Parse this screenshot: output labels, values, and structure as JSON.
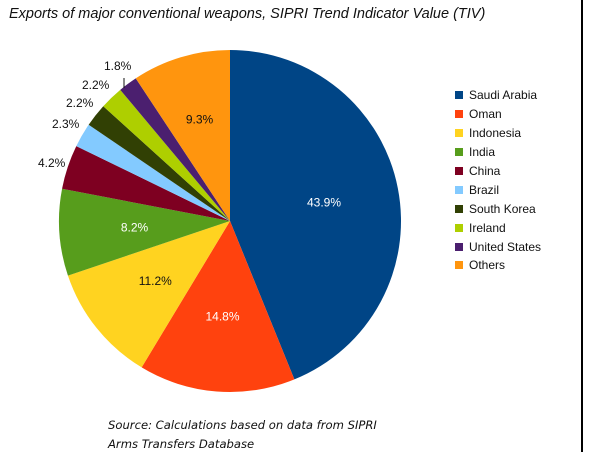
{
  "chart_data": {
    "type": "pie",
    "title": "Exports of major conventional weapons, SIPRI Trend Indicator Value (TIV)",
    "legend_position": "right",
    "slices": [
      {
        "name": "Saudi Arabia",
        "label": "43.9%",
        "value": 43.9,
        "color": "#004586"
      },
      {
        "name": "Oman",
        "label": "14.8%",
        "value": 14.8,
        "color": "#ff420e"
      },
      {
        "name": "Indonesia",
        "label": "11.2%",
        "value": 11.2,
        "color": "#ffd320"
      },
      {
        "name": "India",
        "label": "8.2%",
        "value": 8.2,
        "color": "#579d1c"
      },
      {
        "name": "China",
        "label": "4.2%",
        "value": 4.2,
        "color": "#7e0021"
      },
      {
        "name": "Brazil",
        "label": "2.3%",
        "value": 2.3,
        "color": "#83caff"
      },
      {
        "name": "South Korea",
        "label": "2.2%",
        "value": 2.2,
        "color": "#314004"
      },
      {
        "name": "Ireland",
        "label": "2.2%",
        "value": 2.2,
        "color": "#aecf00"
      },
      {
        "name": "United States",
        "label": "1.8%",
        "value": 1.8,
        "color": "#4b1f6f"
      },
      {
        "name": "Others",
        "label": "9.3%",
        "value": 9.3,
        "color": "#ff950e"
      }
    ]
  },
  "source": {
    "line1": "Source: Calculations based on data from SIPRI",
    "line2": "Arms Transfers Database"
  }
}
